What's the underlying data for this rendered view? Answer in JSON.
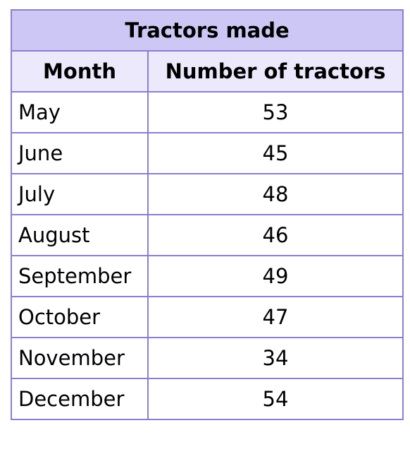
{
  "chart_data": {
    "type": "table",
    "title": "Tractors made",
    "columns": [
      "Month",
      "Number of tractors"
    ],
    "rows": [
      {
        "month": "May",
        "value": 53
      },
      {
        "month": "June",
        "value": 45
      },
      {
        "month": "July",
        "value": 48
      },
      {
        "month": "August",
        "value": 46
      },
      {
        "month": "September",
        "value": 49
      },
      {
        "month": "October",
        "value": 47
      },
      {
        "month": "November",
        "value": 34
      },
      {
        "month": "December",
        "value": 54
      }
    ]
  },
  "colors": {
    "border": "#8a7fcf",
    "title_bg": "#cdc7f5",
    "header_bg": "#ece9fc"
  }
}
